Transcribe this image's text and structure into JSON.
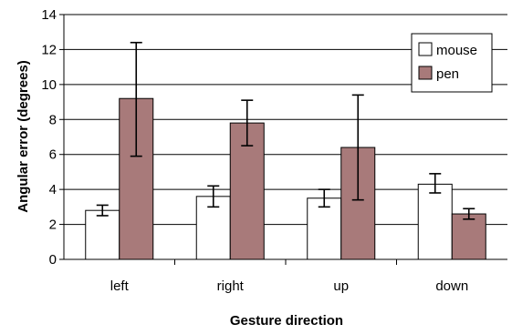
{
  "chart_data": {
    "type": "bar",
    "xlabel": "Gesture direction",
    "ylabel": "Angular error (degrees)",
    "ylim": [
      0,
      14
    ],
    "yticks": [
      "0",
      "2",
      "4",
      "6",
      "8",
      "10",
      "12",
      "14"
    ],
    "grid": true,
    "legend_position": "top-right",
    "categories": [
      "left",
      "right",
      "up",
      "down"
    ],
    "series": [
      {
        "name": "mouse",
        "color": "#ffffff",
        "values": [
          2.8,
          3.6,
          3.5,
          4.3
        ],
        "error_low": [
          2.5,
          3.0,
          3.0,
          3.8
        ],
        "error_high": [
          3.1,
          4.2,
          4.0,
          4.9
        ]
      },
      {
        "name": "pen",
        "color": "#a87a7a",
        "values": [
          9.2,
          7.8,
          6.4,
          2.6
        ],
        "error_low": [
          5.9,
          6.5,
          3.4,
          2.3
        ],
        "error_high": [
          12.4,
          9.1,
          9.4,
          2.9
        ]
      }
    ]
  }
}
